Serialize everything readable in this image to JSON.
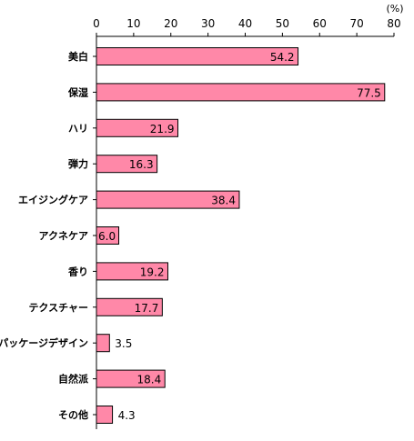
{
  "chart_data": {
    "type": "bar",
    "orientation": "horizontal",
    "categories": [
      "美白",
      "保湿",
      "ハリ",
      "弾力",
      "エイジングケア",
      "アクネケア",
      "香り",
      "テクスチャー",
      "パッケージデザイン",
      "自然派",
      "その他"
    ],
    "series": [
      {
        "values": [
          54.2,
          77.5,
          21.9,
          16.3,
          38.4,
          6.0,
          19.2,
          17.7,
          3.5,
          18.4,
          4.3
        ]
      }
    ],
    "value_labels": [
      "54.2",
      "77.5",
      "21.9",
      "16.3",
      "38.4",
      "6.0",
      "19.2",
      "17.7",
      "3.5",
      "18.4",
      "4.3"
    ],
    "x_ticks": [
      "0",
      "10",
      "20",
      "30",
      "40",
      "50",
      "60",
      "70",
      "80"
    ],
    "xlim": [
      0,
      80
    ],
    "unit": "(%)",
    "title": "",
    "xlabel": "",
    "ylabel": "",
    "grid": false,
    "legend": "none",
    "bar_color": "#FF88A8",
    "bar_edge_color": "#000000",
    "axis_position": "top"
  }
}
